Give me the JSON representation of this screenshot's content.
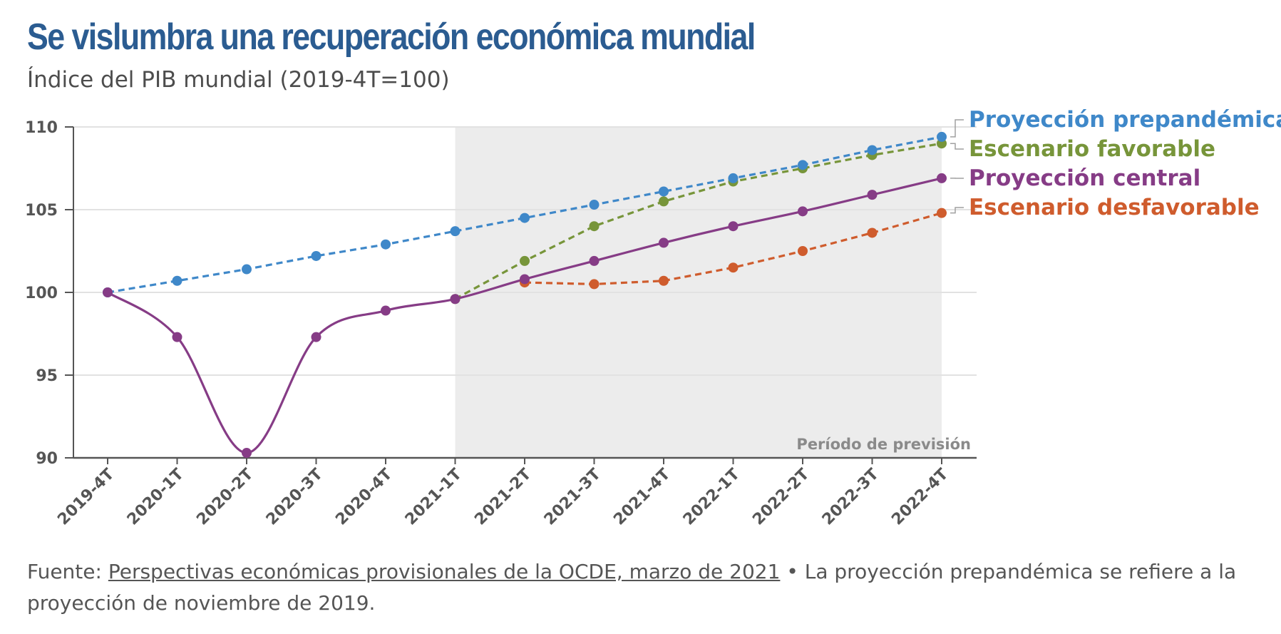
{
  "title": "Se vislumbra una recuperación económica mundial",
  "subtitle": "Índice del PIB mundial (2019-4T=100)",
  "footer": {
    "source_prefix": "Fuente: ",
    "source_link": "Perspectivas económicas provisionales de la OCDE, marzo de 2021",
    "note": " • La proyección prepandémica se refiere a la proyección de noviembre de 2019."
  },
  "chart_data": {
    "type": "line",
    "categories": [
      "2019-4T",
      "2020-1T",
      "2020-2T",
      "2020-3T",
      "2020-4T",
      "2021-1T",
      "2021-2T",
      "2021-3T",
      "2021-4T",
      "2022-1T",
      "2022-2T",
      "2022-3T",
      "2022-4T"
    ],
    "ylim": [
      90,
      110
    ],
    "yticks": [
      90,
      95,
      100,
      105,
      110
    ],
    "grid": true,
    "forecast_band": {
      "from": "2021-1T",
      "to": "2022-4T",
      "label": "Período de previsión",
      "color": "#ececec"
    },
    "series": [
      {
        "name": "Proyección prepandémica",
        "color": "#3f88c9",
        "style": "dashed",
        "smooth": false,
        "values": [
          100,
          100.7,
          101.4,
          102.2,
          102.9,
          103.7,
          104.5,
          105.3,
          106.1,
          106.9,
          107.7,
          108.6,
          109.4
        ]
      },
      {
        "name": "Escenario favorable",
        "color": "#77953a",
        "style": "dashed",
        "smooth": false,
        "values": [
          null,
          null,
          null,
          null,
          null,
          99.6,
          101.9,
          104.0,
          105.5,
          106.7,
          107.5,
          108.3,
          109.0
        ]
      },
      {
        "name": "Proyección central",
        "color": "#863c86",
        "style": "solid",
        "smooth": true,
        "values": [
          100,
          97.3,
          90.3,
          97.3,
          98.9,
          99.6,
          100.8,
          101.9,
          103.0,
          104.0,
          104.9,
          105.9,
          106.9
        ]
      },
      {
        "name": "Escenario desfavorable",
        "color": "#cf5c2d",
        "style": "dashed",
        "smooth": false,
        "values": [
          null,
          null,
          null,
          null,
          null,
          null,
          100.6,
          100.5,
          100.7,
          101.5,
          102.5,
          103.6,
          104.8
        ]
      }
    ],
    "draw_order": [
      3,
      1,
      0,
      2
    ]
  }
}
